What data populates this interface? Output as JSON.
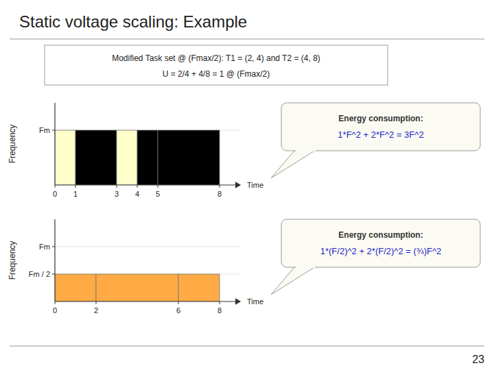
{
  "chart_data": [
    {
      "type": "bar",
      "title": "Static voltage scaling: Example",
      "subtitle": [
        "Modified Task set @ (Fmax/2): T1 = (2, 4) and T2 = (4, 8)",
        "U = 2/4 + 4/8 = 1 @ (Fmax/2)"
      ],
      "x": [
        0,
        1,
        3,
        4,
        5
      ],
      "widths": [
        1,
        2,
        1,
        1,
        3
      ],
      "values": [
        1.0,
        1.0,
        1.0,
        1.0,
        1.0
      ],
      "colors": [
        "#ffffcc",
        "#000000",
        "#ffffcc",
        "#000000",
        "#000000"
      ],
      "xlim": [
        0,
        9.0
      ],
      "xticks": [
        0,
        1,
        3,
        4,
        5,
        8
      ],
      "ylim": [
        0,
        1.5
      ],
      "yticks": [
        {
          "value": 1.0,
          "label": "Fm"
        }
      ],
      "xlabel": "Time",
      "ylabel": "Frequency",
      "annotations": [
        "Energy consumption:",
        "1*F^2 + 2*F^2 = 3F^2"
      ]
    },
    {
      "type": "bar",
      "x": [
        0,
        2,
        6
      ],
      "widths": [
        2,
        4,
        2
      ],
      "values": [
        0.5,
        0.5,
        0.5
      ],
      "colors": [
        "#ffaa44",
        "#ffaa44",
        "#ffaa44"
      ],
      "xlim": [
        0,
        9.0
      ],
      "xticks": [
        0,
        2,
        6,
        8
      ],
      "ylim": [
        0,
        1.5
      ],
      "yticks": [
        {
          "value": 0.5,
          "label": "Fm / 2"
        },
        {
          "value": 1.0,
          "label": "Fm"
        }
      ],
      "xlabel": "Time",
      "ylabel": "Frequency",
      "annotations": [
        "Energy consumption:",
        "1*(F/2)^2 + 2*(F/2)^2 = (¾)F^2",
        "23"
      ]
    }
  ]
}
